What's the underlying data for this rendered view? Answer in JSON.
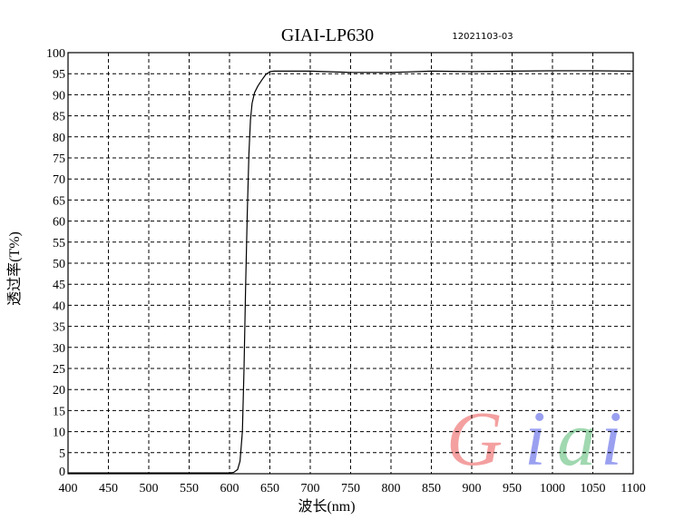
{
  "chart_data": {
    "type": "line",
    "title": "GIAI-LP630",
    "subtitle": "12021103-03",
    "xlabel": "波长(nm)",
    "ylabel": "透过率(T%)",
    "xlim": [
      400,
      1100
    ],
    "ylim": [
      0,
      100
    ],
    "xticks": [
      400,
      450,
      500,
      550,
      600,
      650,
      700,
      750,
      800,
      850,
      900,
      950,
      1000,
      1050,
      1100
    ],
    "yticks": [
      0,
      5,
      10,
      15,
      20,
      25,
      30,
      35,
      40,
      45,
      50,
      55,
      60,
      65,
      70,
      75,
      80,
      85,
      90,
      95,
      100
    ],
    "grid": true,
    "grid_style": "dashed",
    "line_color": "#000000",
    "series": [
      {
        "x": [
          400,
          500,
          600,
          605,
          610,
          613,
          616,
          618,
          620,
          622,
          624,
          626,
          628,
          631,
          635,
          640,
          645,
          650,
          655,
          700,
          750,
          800,
          850,
          900,
          950,
          1000,
          1050,
          1100
        ],
        "y": [
          0.2,
          0.2,
          0.2,
          0.3,
          1,
          3,
          10,
          25,
          45,
          62,
          76,
          84,
          88,
          90.5,
          92,
          93.5,
          94.8,
          95.5,
          95.6,
          95.6,
          95.3,
          95.3,
          95.6,
          95.5,
          95.6,
          95.7,
          95.7,
          95.6
        ]
      }
    ]
  },
  "watermark": {
    "text": "Giai",
    "colors": [
      "#f4a0a0",
      "#9aa0f0",
      "#a0d8b0",
      "#9aa0f0"
    ]
  }
}
